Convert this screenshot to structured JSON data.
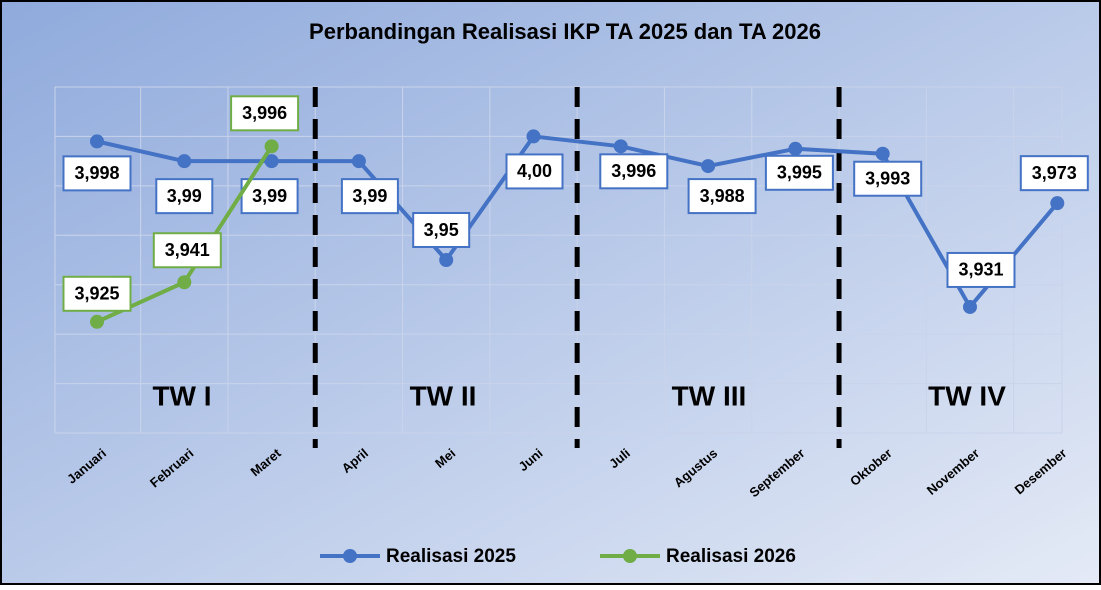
{
  "chart_data": {
    "type": "line",
    "title": "Perbandingan Realisasi IKP TA 2025 dan TA 2026",
    "categories": [
      "Januari",
      "Februari",
      "Maret",
      "April",
      "Mei",
      "Juni",
      "Juli",
      "Agustus",
      "September",
      "Oktober",
      "November",
      "Desember"
    ],
    "series": [
      {
        "name": "Realisasi 2025",
        "color": "#4472c4",
        "values": [
          3.998,
          3.99,
          3.99,
          3.99,
          3.95,
          4.0,
          3.996,
          3.988,
          3.995,
          3.993,
          3.931,
          3.973
        ],
        "value_labels": [
          "3,998",
          "3,99",
          "3,99",
          "3,99",
          "3,95",
          "4,00",
          "3,996",
          "3,988",
          "3,995",
          "3,993",
          "3,931",
          "3,973"
        ]
      },
      {
        "name": "Realisasi 2026",
        "color": "#70ad47",
        "values": [
          3.925,
          3.941,
          3.996,
          null,
          null,
          null,
          null,
          null,
          null,
          null,
          null,
          null
        ],
        "value_labels": [
          "3,925",
          "3,941",
          "3,996",
          null,
          null,
          null,
          null,
          null,
          null,
          null,
          null,
          null
        ]
      }
    ],
    "annotations": [
      "TW I",
      "TW II",
      "TW III",
      "TW IV"
    ],
    "ylim": [
      3.88,
      4.02
    ],
    "yticks": [
      3.88,
      3.9,
      3.92,
      3.94,
      3.96,
      3.98,
      4.0,
      4.02
    ],
    "grid": true,
    "legend": "bottom"
  }
}
